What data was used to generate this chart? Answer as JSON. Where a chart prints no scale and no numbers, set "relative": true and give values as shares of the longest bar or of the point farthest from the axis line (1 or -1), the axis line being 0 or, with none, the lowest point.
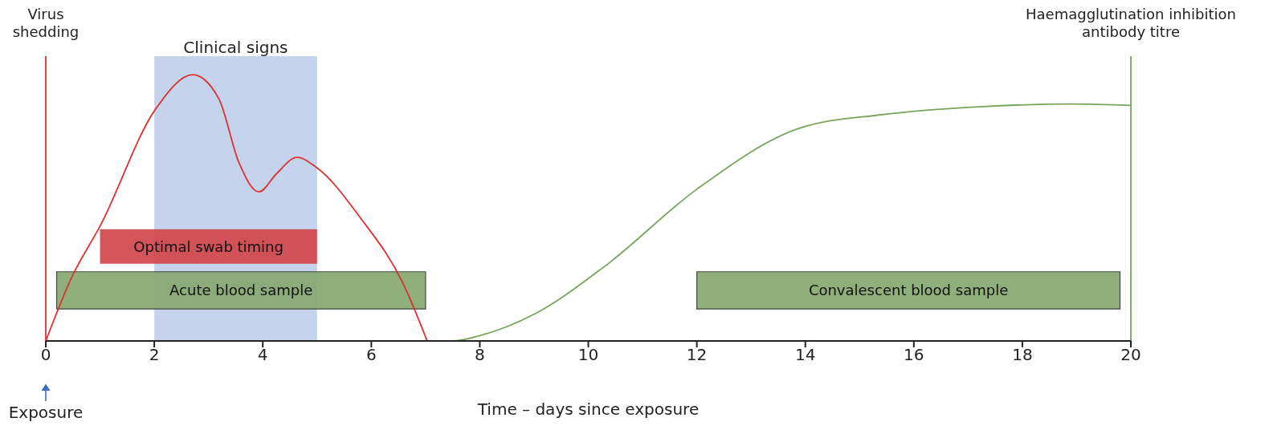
{
  "chart_data": {
    "type": "line",
    "relative": true,
    "xlabel": "Time – days since exposure",
    "xlim": [
      0,
      20
    ],
    "xticks": [
      0,
      2,
      4,
      6,
      8,
      10,
      12,
      14,
      16,
      18,
      20
    ],
    "marker": "none",
    "line_style": "solid",
    "series": [
      {
        "color": "#dc3232",
        "x": [
          0,
          0.48,
          1.01,
          2.02,
          2.71,
          3.19,
          3.56,
          3.93,
          4.26,
          4.63,
          5.0,
          5.79,
          6.6,
          7.03
        ],
        "values": [
          0,
          0.24,
          0.435,
          0.87,
          1,
          0.91,
          0.67,
          0.56,
          0.63,
          0.69,
          0.65,
          0.465,
          0.21,
          0
        ]
      },
      {
        "color": "#78a55a",
        "x": [
          7.05,
          7.5,
          8.0,
          9.0,
          10.3,
          12.0,
          13.9,
          15.4,
          17.2,
          18.9,
          20
        ],
        "values": [
          0,
          0,
          0.02,
          0.1,
          0.28,
          0.57,
          0.8,
          0.85,
          0.88,
          0.89,
          0.885
        ]
      }
    ],
    "ref_lines": [
      {
        "axis": "x",
        "value": 0,
        "label": "Virus shedding",
        "color": "#dc3232"
      },
      {
        "axis": "x",
        "value": 20,
        "label": "Haemagglutination inhibition antibody titre",
        "color": "#78a55a"
      }
    ],
    "bands": [
      {
        "axis": "x",
        "from": 2,
        "to": 5,
        "label": "Clinical signs",
        "color": "#c5d3ec"
      },
      {
        "axis": "x",
        "from": 0.2,
        "to": 7,
        "label": "Acute blood sample",
        "color": "#86a870"
      },
      {
        "axis": "x",
        "from": 1,
        "to": 5,
        "label": "Optimal swab timing",
        "color": "#d0464b"
      },
      {
        "axis": "x",
        "from": 12,
        "to": 19.8,
        "label": "Convalescent blood sample",
        "color": "#86a870"
      }
    ],
    "annotations": [
      "Exposure"
    ]
  }
}
